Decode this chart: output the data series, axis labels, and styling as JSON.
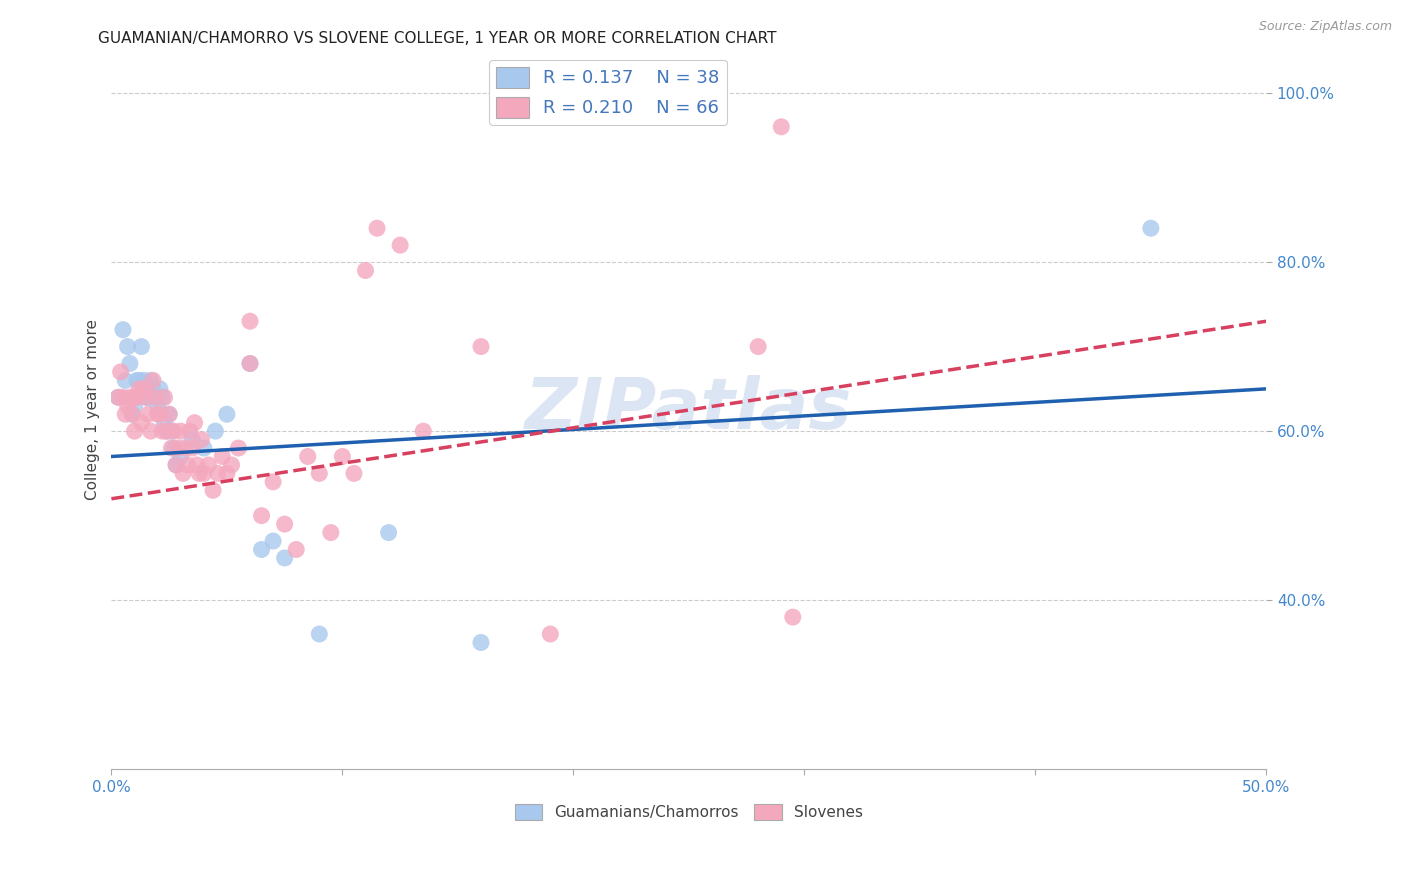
{
  "title": "GUAMANIAN/CHAMORRO VS SLOVENE COLLEGE, 1 YEAR OR MORE CORRELATION CHART",
  "source_text": "Source: ZipAtlas.com",
  "ylabel": "College, 1 year or more",
  "xlim": [
    0.0,
    0.5
  ],
  "ylim": [
    0.2,
    1.05
  ],
  "xticks": [
    0.0,
    0.1,
    0.2,
    0.3,
    0.4,
    0.5
  ],
  "xticklabels_show": [
    "0.0%",
    "",
    "",
    "",
    "",
    "50.0%"
  ],
  "yticks": [
    0.4,
    0.6,
    0.8,
    1.0
  ],
  "yticklabels": [
    "40.0%",
    "60.0%",
    "80.0%",
    "100.0%"
  ],
  "watermark": "ZIPatlas",
  "bottom_legend_labels": [
    "Guamanians/Chamorros",
    "Slovenes"
  ],
  "blue_color": "#a8c8ee",
  "pink_color": "#f4a8be",
  "blue_line_color": "#2060b0",
  "pink_line_color": "#d84060",
  "R_blue": 0.137,
  "N_blue": 38,
  "R_pink": 0.21,
  "N_pink": 66,
  "title_fontsize": 11,
  "axis_label_fontsize": 11,
  "tick_fontsize": 11,
  "legend_fontsize": 13,
  "blue_line_intercept": 0.57,
  "blue_line_slope": 0.16,
  "pink_line_intercept": 0.52,
  "pink_line_slope": 0.42,
  "blue_scatter": [
    [
      0.003,
      0.64
    ],
    [
      0.005,
      0.72
    ],
    [
      0.006,
      0.66
    ],
    [
      0.007,
      0.7
    ],
    [
      0.008,
      0.68
    ],
    [
      0.009,
      0.62
    ],
    [
      0.01,
      0.63
    ],
    [
      0.011,
      0.66
    ],
    [
      0.012,
      0.66
    ],
    [
      0.013,
      0.7
    ],
    [
      0.014,
      0.66
    ],
    [
      0.015,
      0.64
    ],
    [
      0.016,
      0.64
    ],
    [
      0.017,
      0.66
    ],
    [
      0.018,
      0.65
    ],
    [
      0.019,
      0.64
    ],
    [
      0.02,
      0.63
    ],
    [
      0.021,
      0.65
    ],
    [
      0.022,
      0.64
    ],
    [
      0.023,
      0.61
    ],
    [
      0.024,
      0.6
    ],
    [
      0.025,
      0.62
    ],
    [
      0.026,
      0.6
    ],
    [
      0.027,
      0.58
    ],
    [
      0.028,
      0.56
    ],
    [
      0.03,
      0.57
    ],
    [
      0.035,
      0.59
    ],
    [
      0.04,
      0.58
    ],
    [
      0.045,
      0.6
    ],
    [
      0.05,
      0.62
    ],
    [
      0.06,
      0.68
    ],
    [
      0.065,
      0.46
    ],
    [
      0.07,
      0.47
    ],
    [
      0.075,
      0.45
    ],
    [
      0.09,
      0.36
    ],
    [
      0.12,
      0.48
    ],
    [
      0.16,
      0.35
    ],
    [
      0.45,
      0.84
    ]
  ],
  "pink_scatter": [
    [
      0.003,
      0.64
    ],
    [
      0.004,
      0.67
    ],
    [
      0.005,
      0.64
    ],
    [
      0.006,
      0.62
    ],
    [
      0.007,
      0.63
    ],
    [
      0.008,
      0.64
    ],
    [
      0.009,
      0.62
    ],
    [
      0.01,
      0.64
    ],
    [
      0.01,
      0.6
    ],
    [
      0.011,
      0.64
    ],
    [
      0.012,
      0.65
    ],
    [
      0.013,
      0.61
    ],
    [
      0.014,
      0.65
    ],
    [
      0.015,
      0.64
    ],
    [
      0.016,
      0.62
    ],
    [
      0.017,
      0.6
    ],
    [
      0.018,
      0.66
    ],
    [
      0.019,
      0.64
    ],
    [
      0.02,
      0.62
    ],
    [
      0.021,
      0.62
    ],
    [
      0.022,
      0.6
    ],
    [
      0.023,
      0.64
    ],
    [
      0.024,
      0.6
    ],
    [
      0.025,
      0.62
    ],
    [
      0.026,
      0.58
    ],
    [
      0.027,
      0.6
    ],
    [
      0.028,
      0.56
    ],
    [
      0.029,
      0.58
    ],
    [
      0.03,
      0.6
    ],
    [
      0.031,
      0.55
    ],
    [
      0.032,
      0.58
    ],
    [
      0.033,
      0.56
    ],
    [
      0.034,
      0.6
    ],
    [
      0.035,
      0.58
    ],
    [
      0.036,
      0.61
    ],
    [
      0.037,
      0.56
    ],
    [
      0.038,
      0.55
    ],
    [
      0.039,
      0.59
    ],
    [
      0.04,
      0.55
    ],
    [
      0.042,
      0.56
    ],
    [
      0.044,
      0.53
    ],
    [
      0.046,
      0.55
    ],
    [
      0.048,
      0.57
    ],
    [
      0.05,
      0.55
    ],
    [
      0.052,
      0.56
    ],
    [
      0.055,
      0.58
    ],
    [
      0.06,
      0.73
    ],
    [
      0.06,
      0.68
    ],
    [
      0.065,
      0.5
    ],
    [
      0.07,
      0.54
    ],
    [
      0.075,
      0.49
    ],
    [
      0.08,
      0.46
    ],
    [
      0.085,
      0.57
    ],
    [
      0.09,
      0.55
    ],
    [
      0.095,
      0.48
    ],
    [
      0.1,
      0.57
    ],
    [
      0.105,
      0.55
    ],
    [
      0.11,
      0.79
    ],
    [
      0.115,
      0.84
    ],
    [
      0.125,
      0.82
    ],
    [
      0.135,
      0.6
    ],
    [
      0.16,
      0.7
    ],
    [
      0.19,
      0.36
    ],
    [
      0.28,
      0.7
    ],
    [
      0.29,
      0.96
    ],
    [
      0.295,
      0.38
    ]
  ]
}
